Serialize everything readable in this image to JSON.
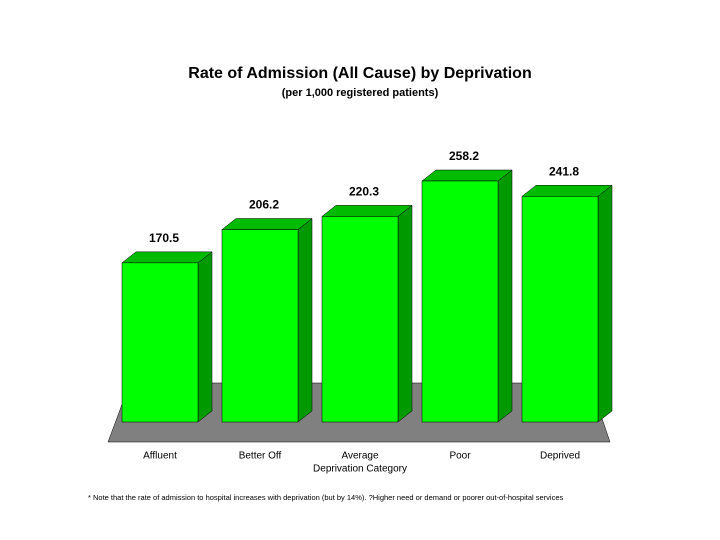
{
  "chart_data": {
    "type": "bar3d",
    "title": "Rate of Admission (All Cause) by Deprivation",
    "subtitle": "(per 1,000 registered patients)",
    "x_label": "Deprivation Category",
    "categories": [
      "Affluent",
      "Better Off",
      "Average",
      "Poor",
      "Deprived"
    ],
    "values": [
      170.5,
      206.2,
      220.3,
      258.2,
      241.8
    ],
    "color": "#00ff00",
    "ylim": [
      0,
      300
    ],
    "footnote": "* Note that the rate of admission to hospital increases with deprivation (but by 14%). ?Higher need or demand or poorer out-of-hospital services"
  }
}
